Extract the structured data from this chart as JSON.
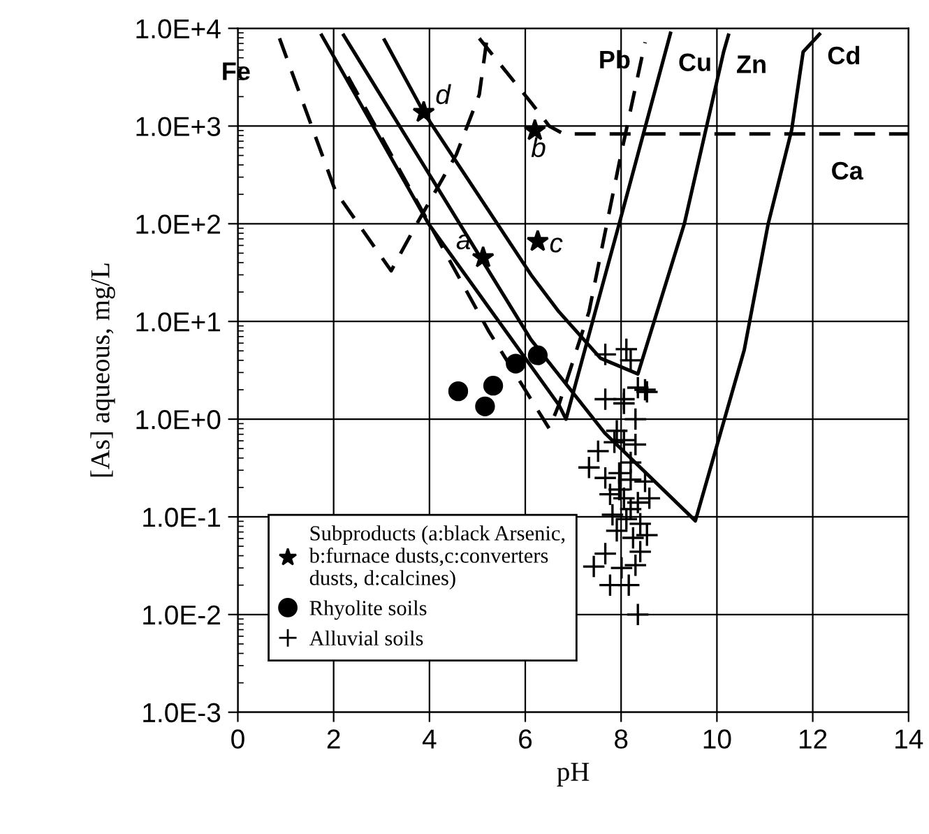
{
  "chart_data": {
    "type": "line",
    "xlabel": "pH",
    "ylabel": "[As] aqueous, mg/L",
    "log": "y",
    "grid": true,
    "legend": "bottom left",
    "xlim": [
      0,
      14
    ],
    "xticks": [
      0,
      2,
      4,
      6,
      8,
      10,
      12,
      14
    ],
    "ylim": [
      0.001,
      10000
    ],
    "yticks": [
      {
        "value": 0.001,
        "label": "1.0E-3"
      },
      {
        "value": 0.01,
        "label": "1.0E-2"
      },
      {
        "value": 0.1,
        "label": "1.0E-1"
      },
      {
        "value": 1,
        "label": "1.0E+0"
      },
      {
        "value": 10,
        "label": "1.0E+1"
      },
      {
        "value": 100,
        "label": "1.0E+2"
      },
      {
        "value": 1000,
        "label": "1.0E+3"
      },
      {
        "value": 10000,
        "label": "1.0E+4"
      }
    ],
    "series": [
      {
        "name": "Fe",
        "line_style": "dashed",
        "color": "#000000",
        "x": [
          0.87,
          2.04,
          3.2,
          3.69,
          4.56,
          5.04,
          5.19
        ],
        "values": [
          7900,
          214,
          33,
          91,
          510,
          2100,
          7200
        ]
      },
      {
        "name": "Pb",
        "line_style": "dashed",
        "color": "#000000",
        "x": [
          2.3,
          5.24,
          6.5,
          6.7,
          7.33,
          7.96,
          8.5
        ],
        "values": [
          3200,
          7.9,
          0.8,
          1.4,
          12.6,
          417,
          7200
        ]
      },
      {
        "name": "Cu",
        "line_style": "solid",
        "color": "#000000",
        "x": [
          1.75,
          3.98,
          6.7,
          6.85,
          7.96,
          9.03
        ],
        "values": [
          8500,
          100,
          1.4,
          1.0,
          100,
          8900
        ]
      },
      {
        "name": "Zn",
        "line_style": "solid",
        "color": "#000000",
        "x": [
          3.06,
          3.88,
          6.12,
          6.7,
          7.57,
          8.35,
          9.32,
          10.14,
          10.24
        ],
        "values": [
          7600,
          1380,
          30,
          12.6,
          4.2,
          2.9,
          100,
          5750,
          8500
        ]
      },
      {
        "name": "Cd",
        "line_style": "solid",
        "color": "#000000",
        "x": [
          2.21,
          6.12,
          7.66,
          9.55,
          10.57,
          11.07,
          11.56,
          11.8,
          12.14
        ],
        "values": [
          8500,
          6.5,
          0.72,
          0.091,
          5.1,
          100,
          910,
          5750,
          8700
        ]
      },
      {
        "name": "Ca",
        "line_style": "dashed",
        "color": "#000000",
        "x": [
          5.04,
          6.12,
          6.5,
          6.8,
          14
        ],
        "values": [
          7900,
          1740,
          1000,
          830,
          830
        ]
      },
      {
        "name": "Subproducts (a:black Arsenic,\nb:furnace dusts,c:converters\ndusts, d:calcines)",
        "type": "scatter",
        "marker": "star",
        "color": "#000000",
        "x": [
          5.12,
          6.2,
          6.26,
          3.88
        ],
        "values": [
          45,
          900,
          66,
          1380
        ]
      },
      {
        "name": "Rhyolite soils",
        "type": "scatter",
        "marker": "circle",
        "color": "#000000",
        "x": [
          4.6,
          5.33,
          5.16,
          5.8,
          6.26
        ],
        "values": [
          1.93,
          2.2,
          1.35,
          3.7,
          4.5
        ]
      },
      {
        "name": "Alluvial soils",
        "type": "scatter",
        "marker": "cross",
        "color": "#000000",
        "x": [
          7.67,
          8.11,
          8.2,
          8.35,
          8.5,
          7.67,
          8.06,
          8.06,
          8.54,
          8.3,
          7.91,
          8.06,
          8.3,
          7.52,
          7.33,
          7.67,
          7.96,
          8.2,
          8.5,
          7.77,
          8.06,
          8.35,
          8.59,
          7.82,
          8.11,
          8.4,
          7.91,
          8.25,
          8.54,
          7.67,
          8.4,
          7.43,
          8.01,
          8.3,
          7.77,
          8.16,
          8.35,
          8.2,
          7.96,
          8.2,
          7.86
        ],
        "values": [
          4.6,
          5.2,
          4.0,
          2.1,
          2.0,
          1.6,
          1.6,
          1.45,
          1.9,
          1.0,
          0.76,
          0.61,
          0.55,
          0.47,
          0.32,
          0.25,
          0.28,
          0.24,
          0.23,
          0.17,
          0.155,
          0.14,
          0.155,
          0.105,
          0.095,
          0.085,
          0.072,
          0.061,
          0.065,
          0.042,
          0.044,
          0.031,
          0.03,
          0.032,
          0.02,
          0.02,
          0.01,
          0.36,
          0.19,
          0.12,
          0.58
        ]
      }
    ],
    "annotations": [
      {
        "text": "a",
        "x": 5.12,
        "y": 45
      },
      {
        "text": "b",
        "x": 6.2,
        "y": 900
      },
      {
        "text": "c",
        "x": 6.26,
        "y": 66
      },
      {
        "text": "d",
        "x": 3.88,
        "y": 1380
      }
    ]
  }
}
